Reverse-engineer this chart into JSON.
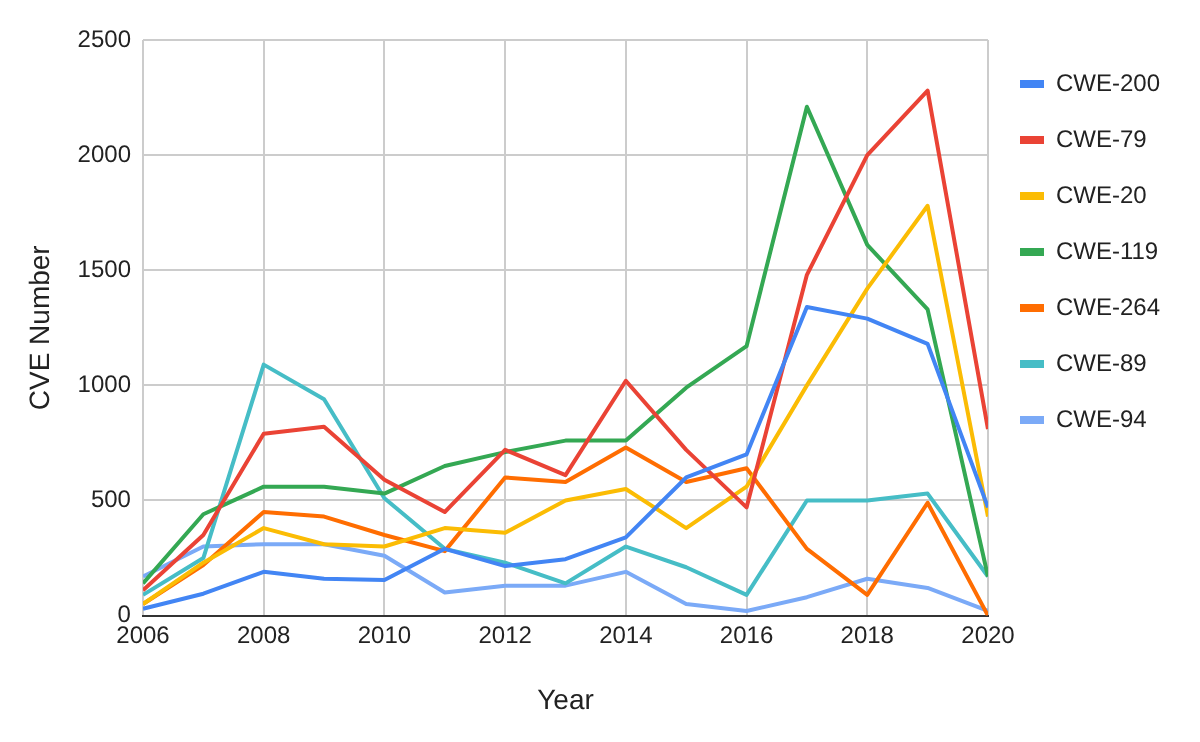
{
  "chart_data": {
    "type": "line",
    "xlabel": "Year",
    "ylabel": "CVE Number",
    "x": [
      2006,
      2007,
      2008,
      2009,
      2010,
      2011,
      2012,
      2013,
      2014,
      2015,
      2016,
      2017,
      2018,
      2019,
      2020
    ],
    "xlim": [
      2006,
      2020
    ],
    "xticks": [
      2006,
      2008,
      2010,
      2012,
      2014,
      2016,
      2018,
      2020
    ],
    "ylim": [
      0,
      2500
    ],
    "yticks": [
      0,
      500,
      1000,
      1500,
      2000,
      2500
    ],
    "grid": true,
    "legend": "right",
    "marker": "none",
    "line_style": "solid",
    "series": [
      {
        "name": "CWE-200",
        "color": "#4285f4",
        "values": [
          30,
          95,
          190,
          160,
          155,
          290,
          215,
          245,
          340,
          600,
          700,
          1340,
          1290,
          1180,
          470
        ]
      },
      {
        "name": "CWE-79",
        "color": "#ea4335",
        "values": [
          110,
          350,
          790,
          820,
          590,
          450,
          720,
          610,
          1020,
          720,
          470,
          1480,
          2000,
          2280,
          810
        ]
      },
      {
        "name": "CWE-20",
        "color": "#fbbc04",
        "values": [
          50,
          230,
          380,
          310,
          300,
          380,
          360,
          500,
          550,
          380,
          560,
          1000,
          1420,
          1780,
          430
        ]
      },
      {
        "name": "CWE-119",
        "color": "#34a853",
        "values": [
          140,
          440,
          560,
          560,
          530,
          650,
          710,
          760,
          760,
          990,
          1170,
          2210,
          1610,
          1330,
          170
        ]
      },
      {
        "name": "CWE-264",
        "color": "#ff6d01",
        "values": [
          50,
          220,
          450,
          430,
          350,
          280,
          600,
          580,
          730,
          580,
          640,
          290,
          90,
          490,
          0
        ]
      },
      {
        "name": "CWE-89",
        "color": "#46bdc6",
        "values": [
          90,
          250,
          1090,
          940,
          510,
          290,
          230,
          140,
          300,
          210,
          90,
          500,
          500,
          530,
          170
        ]
      },
      {
        "name": "CWE-94",
        "color": "#7baaf7",
        "values": [
          170,
          300,
          310,
          310,
          260,
          100,
          130,
          130,
          190,
          50,
          20,
          80,
          160,
          120,
          20
        ]
      }
    ]
  }
}
